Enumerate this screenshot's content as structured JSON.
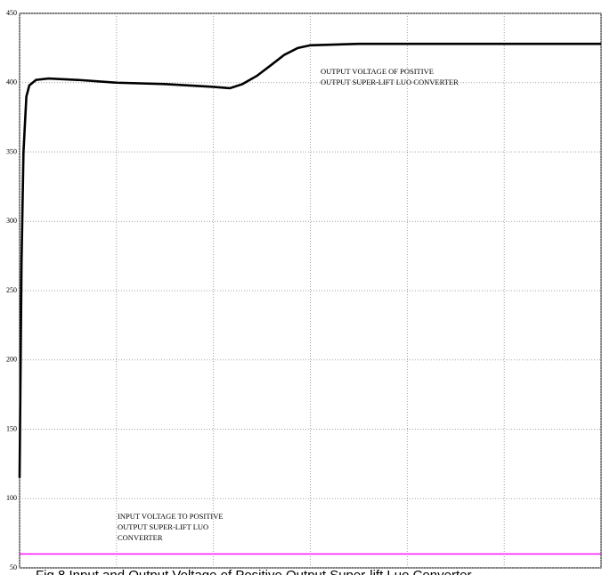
{
  "chart_data": {
    "type": "line",
    "caption": "Fig.8 Input and Output Voltage of Positive Output Super-lift Luo Converter",
    "annotations": [
      [
        "OUTPUT VOLTAGE OF POSITIVE",
        "OUTPUT SUPER-LIFT LUO CONVERTER"
      ],
      [
        "INPUT VOLTAGE TO POSITIVE",
        "OUTPUT SUPER-LIFT LUO",
        "CONVERTER"
      ]
    ],
    "x": [
      0,
      0.02,
      0.04,
      0.07,
      0.1,
      0.17,
      0.3,
      0.6,
      1.0,
      1.5,
      2.0,
      2.17,
      2.3,
      2.45,
      2.6,
      2.73,
      2.87,
      3.0,
      3.5,
      4.0,
      5.0,
      6.0
    ],
    "series": [
      {
        "name": "Output voltage",
        "color": "#000000",
        "values": [
          115,
          270,
          350,
          390,
          398,
          402,
          403,
          402,
          400,
          399,
          397,
          396,
          399,
          405,
          413,
          420,
          425,
          427,
          428,
          428,
          428,
          428
        ]
      },
      {
        "name": "Input voltage",
        "color": "#ff00ff",
        "values": [
          60,
          60,
          60,
          60,
          60,
          60,
          60,
          60,
          60,
          60,
          60,
          60,
          60,
          60,
          60,
          60,
          60,
          60,
          60,
          60,
          60,
          60
        ]
      }
    ],
    "xlim": [
      0,
      6
    ],
    "xticks": [
      0,
      1,
      2,
      3,
      4,
      5,
      6
    ],
    "ylim": [
      50,
      450
    ],
    "yticks": [
      50,
      100,
      150,
      200,
      250,
      300,
      350,
      400,
      450
    ],
    "grid": true
  }
}
